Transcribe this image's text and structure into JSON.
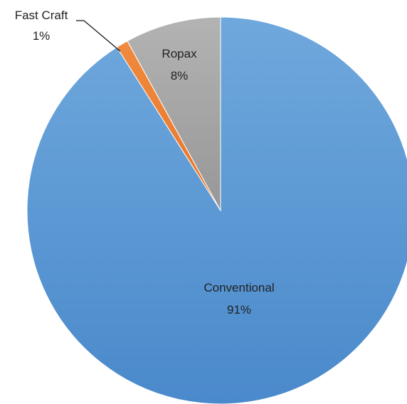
{
  "chart_data": {
    "type": "pie",
    "title": "",
    "legend": "none",
    "slices": [
      {
        "label": "Conventional",
        "value": 91,
        "display": "91%",
        "color": "#5b9bd5"
      },
      {
        "label": "Fast Craft",
        "value": 1,
        "display": "1%",
        "color": "#ed7d31"
      },
      {
        "label": "Ropax",
        "value": 8,
        "display": "8%",
        "color": "#a5a5a5"
      }
    ]
  }
}
